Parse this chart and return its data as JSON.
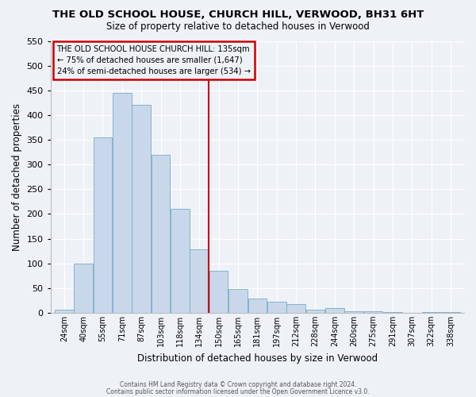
{
  "title": "THE OLD SCHOOL HOUSE, CHURCH HILL, VERWOOD, BH31 6HT",
  "subtitle": "Size of property relative to detached houses in Verwood",
  "xlabel": "Distribution of detached houses by size in Verwood",
  "ylabel": "Number of detached properties",
  "bar_color": "#c8d8ea",
  "bar_edge_color": "#7aaac8",
  "bin_labels": [
    "24sqm",
    "40sqm",
    "55sqm",
    "71sqm",
    "87sqm",
    "103sqm",
    "118sqm",
    "134sqm",
    "150sqm",
    "165sqm",
    "181sqm",
    "197sqm",
    "212sqm",
    "228sqm",
    "244sqm",
    "260sqm",
    "275sqm",
    "291sqm",
    "307sqm",
    "322sqm",
    "338sqm"
  ],
  "bar_values": [
    7,
    100,
    355,
    445,
    420,
    320,
    210,
    128,
    85,
    48,
    28,
    22,
    17,
    7,
    10,
    3,
    3,
    1,
    0,
    1,
    2
  ],
  "ylim": [
    0,
    550
  ],
  "yticks": [
    0,
    50,
    100,
    150,
    200,
    250,
    300,
    350,
    400,
    450,
    500,
    550
  ],
  "vline_x": 7.5,
  "vline_color": "#cc0000",
  "annotation_title": "THE OLD SCHOOL HOUSE CHURCH HILL: 135sqm",
  "annotation_line1": "← 75% of detached houses are smaller (1,647)",
  "annotation_line2": "24% of semi-detached houses are larger (534) →",
  "annotation_box_color": "#cc0000",
  "footer_line1": "Contains HM Land Registry data © Crown copyright and database right 2024.",
  "footer_line2": "Contains public sector information licensed under the Open Government Licence v3.0.",
  "background_color": "#eef2f7",
  "grid_color": "#ffffff"
}
